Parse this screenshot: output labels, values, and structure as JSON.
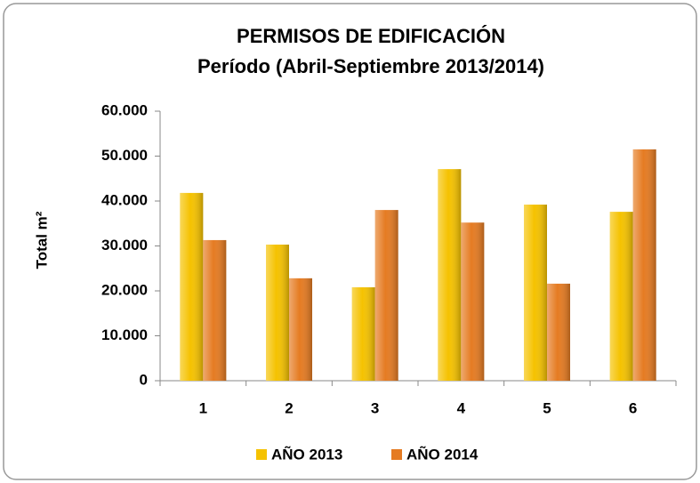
{
  "chart_data": {
    "type": "bar",
    "title": "PERMISOS DE EDIFICACIÓN",
    "subtitle": "Período (Abril-Septiembre 2013/2014)",
    "y_label": "Total m²",
    "categories": [
      "1",
      "2",
      "3",
      "4",
      "5",
      "6"
    ],
    "series": [
      {
        "name": "AÑO 2013",
        "color": "#f5c200",
        "values": [
          41800,
          30300,
          20800,
          47100,
          39200,
          37600
        ]
      },
      {
        "name": "AÑO 2014",
        "color": "#e57b22",
        "values": [
          31300,
          22800,
          38000,
          35200,
          21600,
          51500
        ]
      }
    ],
    "ylim": [
      0,
      60000
    ],
    "yticks": [
      0,
      {
        "value": 10000,
        "label": "10.000"
      },
      {
        "value": 20000,
        "label": "20.000"
      },
      {
        "value": 30000,
        "label": "30.000"
      },
      {
        "value": 40000,
        "label": "40.000"
      },
      {
        "value": 50000,
        "label": "50.000"
      },
      {
        "value": 60000,
        "label": "60.000"
      }
    ],
    "grid": false,
    "legend": "bottom"
  }
}
